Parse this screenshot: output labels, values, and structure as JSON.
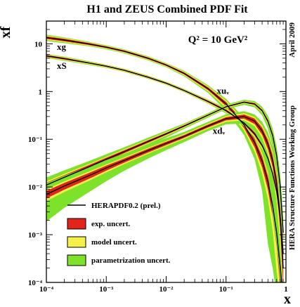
{
  "chart_data": {
    "type": "line",
    "title": "H1 and ZEUS Combined PDF Fit",
    "ylabel": "xf",
    "xlabel": "x",
    "q2_annotation": "Q² = 10 GeV²",
    "side_labels": [
      "April 2009",
      "HERA Structure Functions Working Group"
    ],
    "x_scale": "log",
    "y_scale": "log",
    "xlim": [
      0.0001,
      1
    ],
    "ylim": [
      0.0001,
      30
    ],
    "grid": false,
    "x_ticks": [
      {
        "value": 0.0001,
        "label": "10⁻⁴"
      },
      {
        "value": 0.001,
        "label": "10⁻³"
      },
      {
        "value": 0.01,
        "label": "10⁻²"
      },
      {
        "value": 0.1,
        "label": "10⁻¹"
      },
      {
        "value": 1,
        "label": "1"
      }
    ],
    "y_ticks": [
      {
        "value": 0.0001,
        "label": "10⁻⁴"
      },
      {
        "value": 0.001,
        "label": "10⁻³"
      },
      {
        "value": 0.01,
        "label": "10⁻²"
      },
      {
        "value": 0.1,
        "label": "10⁻¹"
      },
      {
        "value": 1,
        "label": "1"
      },
      {
        "value": 10,
        "label": "10"
      }
    ],
    "legend": {
      "placement": "bottom-center",
      "entries": [
        {
          "label": "HERAPDF0.2 (prel.)",
          "kind": "line",
          "color": "#000000"
        },
        {
          "label": "exp. uncert.",
          "kind": "box",
          "color": "#e3241b"
        },
        {
          "label": "model uncert.",
          "kind": "box",
          "color": "#f5f04a"
        },
        {
          "label": "parametrization uncert.",
          "kind": "box",
          "color": "#7fe22a"
        }
      ]
    },
    "colors": {
      "exp": "#e3241b",
      "model": "#f5f04a",
      "param": "#7fe22a",
      "central": "#000000"
    },
    "x": [
      0.0001,
      0.0002,
      0.0005,
      0.001,
      0.002,
      0.005,
      0.01,
      0.02,
      0.05,
      0.1,
      0.2,
      0.3,
      0.4,
      0.5,
      0.6,
      0.7,
      0.8,
      0.9
    ],
    "series": [
      {
        "name": "xg",
        "label_x": 0.00015,
        "label_y": 7.5,
        "values": [
          13.5,
          12.0,
          10.0,
          8.5,
          7.0,
          5.0,
          3.6,
          2.4,
          1.15,
          0.55,
          0.2,
          0.085,
          0.035,
          0.013,
          0.004,
          0.0011,
          0.00022,
          3e-05
        ],
        "exp_rel": [
          0.06,
          0.06,
          0.05,
          0.04,
          0.04,
          0.04,
          0.04,
          0.05,
          0.07,
          0.1,
          0.14,
          0.2,
          0.26,
          0.32,
          0.4,
          0.5,
          0.6,
          0.7
        ],
        "model_rel": [
          0.04,
          0.04,
          0.03,
          0.03,
          0.03,
          0.03,
          0.03,
          0.04,
          0.05,
          0.08,
          0.1,
          0.15,
          0.2,
          0.25,
          0.3,
          0.35,
          0.4,
          0.45
        ],
        "param_rel": [
          0.05,
          0.04,
          0.03,
          0.03,
          0.03,
          0.03,
          0.03,
          0.04,
          0.06,
          0.1,
          0.15,
          0.2,
          0.3,
          0.4,
          0.5,
          0.6,
          0.7,
          0.8
        ]
      },
      {
        "name": "xS",
        "label_x": 0.00015,
        "label_y": 3.0,
        "values": [
          5.6,
          4.9,
          4.0,
          3.4,
          2.8,
          2.0,
          1.5,
          1.05,
          0.62,
          0.4,
          0.22,
          0.13,
          0.075,
          0.04,
          0.019,
          0.008,
          0.0025,
          0.0004
        ],
        "exp_rel": [
          0.04,
          0.04,
          0.03,
          0.03,
          0.03,
          0.03,
          0.03,
          0.03,
          0.04,
          0.05,
          0.06,
          0.08,
          0.1,
          0.12,
          0.15,
          0.18,
          0.22,
          0.3
        ],
        "model_rel": [
          0.03,
          0.03,
          0.03,
          0.03,
          0.03,
          0.03,
          0.03,
          0.03,
          0.03,
          0.04,
          0.05,
          0.06,
          0.08,
          0.1,
          0.12,
          0.15,
          0.18,
          0.22
        ],
        "param_rel": [
          0.03,
          0.03,
          0.03,
          0.02,
          0.02,
          0.02,
          0.02,
          0.02,
          0.03,
          0.04,
          0.05,
          0.06,
          0.08,
          0.1,
          0.12,
          0.15,
          0.2,
          0.25
        ]
      },
      {
        "name": "xuᵥ",
        "label_x": 0.07,
        "label_y": 0.9,
        "values": [
          0.011,
          0.016,
          0.026,
          0.038,
          0.055,
          0.09,
          0.13,
          0.19,
          0.32,
          0.48,
          0.6,
          0.55,
          0.4,
          0.24,
          0.12,
          0.045,
          0.011,
          0.0011
        ],
        "exp_rel": [
          0.12,
          0.11,
          0.09,
          0.08,
          0.07,
          0.06,
          0.05,
          0.04,
          0.03,
          0.03,
          0.03,
          0.04,
          0.05,
          0.07,
          0.09,
          0.12,
          0.18,
          0.3
        ],
        "model_rel": [
          0.07,
          0.07,
          0.06,
          0.05,
          0.05,
          0.04,
          0.04,
          0.03,
          0.03,
          0.03,
          0.03,
          0.03,
          0.04,
          0.05,
          0.07,
          0.09,
          0.12,
          0.2
        ],
        "param_rel": [
          0.25,
          0.22,
          0.18,
          0.15,
          0.12,
          0.1,
          0.08,
          0.06,
          0.05,
          0.05,
          0.06,
          0.08,
          0.12,
          0.18,
          0.25,
          0.35,
          0.5,
          0.7
        ]
      },
      {
        "name": "xdᵥ",
        "label_x": 0.06,
        "label_y": 0.13,
        "values": [
          0.007,
          0.0105,
          0.017,
          0.025,
          0.036,
          0.058,
          0.082,
          0.115,
          0.19,
          0.27,
          0.3,
          0.24,
          0.15,
          0.08,
          0.036,
          0.012,
          0.0025,
          0.0002
        ],
        "exp_rel": [
          0.18,
          0.16,
          0.14,
          0.12,
          0.1,
          0.09,
          0.08,
          0.07,
          0.07,
          0.08,
          0.1,
          0.13,
          0.17,
          0.22,
          0.28,
          0.35,
          0.45,
          0.6
        ],
        "model_rel": [
          0.1,
          0.09,
          0.08,
          0.07,
          0.06,
          0.05,
          0.05,
          0.05,
          0.05,
          0.06,
          0.07,
          0.09,
          0.12,
          0.15,
          0.2,
          0.25,
          0.3,
          0.4
        ],
        "param_rel": [
          0.45,
          0.4,
          0.33,
          0.28,
          0.23,
          0.18,
          0.15,
          0.12,
          0.1,
          0.1,
          0.12,
          0.17,
          0.25,
          0.35,
          0.45,
          0.6,
          0.75,
          0.9
        ]
      }
    ]
  }
}
